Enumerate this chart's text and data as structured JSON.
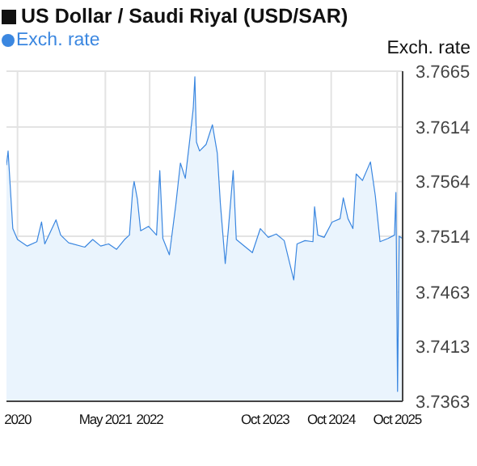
{
  "chart_data": {
    "type": "area",
    "title": "US Dollar / Saudi Riyal (USD/SAR)",
    "ylabel": "Exch. rate",
    "legend": "top left",
    "grid": true,
    "x": [
      "2019-11-01",
      "2019-11-10",
      "2019-12-06",
      "2020-01-01",
      "2020-02-24",
      "2020-04-17",
      "2020-05-13",
      "2020-05-31",
      "2020-08-01",
      "2020-08-27",
      "2020-10-10",
      "2021-01-07",
      "2021-02-20",
      "2021-04-05",
      "2021-05-19",
      "2021-07-02",
      "2021-08-15",
      "2021-09-11",
      "2021-09-29",
      "2021-10-07",
      "2021-10-25",
      "2021-11-12",
      "2021-12-26",
      "2022-02-08",
      "2022-02-26",
      "2022-03-15",
      "2022-04-20",
      "2022-05-25",
      "2022-06-20",
      "2022-07-17",
      "2022-08-12",
      "2022-08-30",
      "2022-09-08",
      "2022-09-17",
      "2022-10-04",
      "2022-11-09",
      "2022-12-14",
      "2023-01-10",
      "2023-01-27",
      "2023-02-23",
      "2023-03-12",
      "2023-04-08",
      "2023-04-25",
      "2023-06-09",
      "2023-07-23",
      "2023-09-05",
      "2023-10-19",
      "2023-12-02",
      "2024-01-15",
      "2024-03-08",
      "2024-03-26",
      "2024-05-09",
      "2024-06-22",
      "2024-07-01",
      "2024-07-19",
      "2024-08-23",
      "2024-10-06",
      "2024-11-19",
      "2024-12-07",
      "2025-01-02",
      "2025-01-29",
      "2025-02-16",
      "2025-03-23",
      "2025-05-06",
      "2025-06-02",
      "2025-06-28",
      "2025-08-11",
      "2025-09-16",
      "2025-09-24",
      "2025-10-03",
      "2025-10-12",
      "2025-10-30"
    ],
    "series": [
      {
        "name": "Exch. rate",
        "color": "#3b87e0",
        "values": [
          3.7579,
          3.7592,
          3.7521,
          3.7511,
          3.7505,
          3.7509,
          3.7527,
          3.7507,
          3.7529,
          3.7515,
          3.7508,
          3.7504,
          3.7511,
          3.7505,
          3.7507,
          3.7502,
          3.7511,
          3.7515,
          3.7556,
          3.7564,
          3.7548,
          3.7519,
          3.7523,
          3.7515,
          3.7574,
          3.7512,
          3.7497,
          3.7542,
          3.7581,
          3.7567,
          3.7604,
          3.7631,
          3.766,
          3.76,
          3.7592,
          3.7598,
          3.7616,
          3.759,
          3.7544,
          3.7489,
          3.752,
          3.7574,
          3.7511,
          3.7505,
          3.7499,
          3.7521,
          3.7513,
          3.7516,
          3.751,
          3.7474,
          3.7507,
          3.751,
          3.7509,
          3.7541,
          3.7515,
          3.7513,
          3.7527,
          3.753,
          3.7549,
          3.753,
          3.7521,
          3.7571,
          3.7565,
          3.7582,
          3.7551,
          3.7509,
          3.7512,
          3.7515,
          3.7554,
          3.7372,
          3.7514,
          3.7512
        ]
      }
    ],
    "xlim": [
      "2019-11-01",
      "2025-10-31"
    ],
    "xticks": [
      {
        "value": "2020-01-01",
        "label": "2020"
      },
      {
        "value": "2021-05-01",
        "label": "May 2021"
      },
      {
        "value": "2022-01-01",
        "label": "2022"
      },
      {
        "value": "2023-10-01",
        "label": "Oct 2023"
      },
      {
        "value": "2024-10-01",
        "label": "Oct 2024"
      },
      {
        "value": "2025-10-01",
        "label": "Oct 2025"
      }
    ],
    "ylim": [
      3.7363,
      3.7665
    ],
    "yticks": [
      3.7363,
      3.7413,
      3.7463,
      3.7514,
      3.7564,
      3.7614,
      3.7665
    ]
  }
}
